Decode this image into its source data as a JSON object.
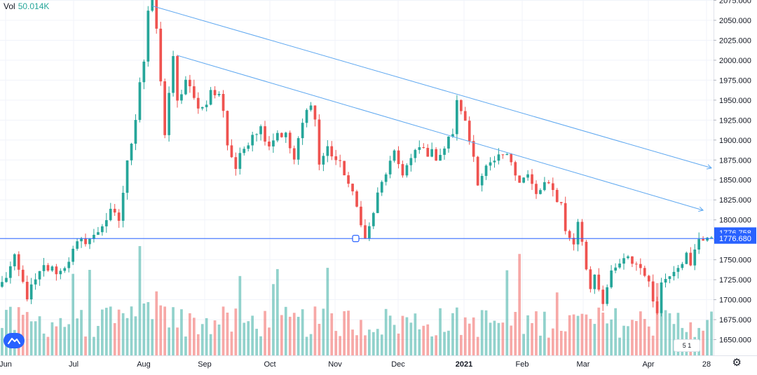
{
  "volume_indicator": {
    "label": "Vol",
    "value": "50.014K"
  },
  "price_badges": {
    "upper": {
      "value": "1776.758",
      "color": "#2962ff"
    },
    "lower": {
      "value": "1776.680",
      "color": "#2962ff"
    }
  },
  "event_flag": {
    "text": "5 1"
  },
  "colors": {
    "up": "#26a69a",
    "down": "#ef5350",
    "trendline": "#5da7f0",
    "hline": "#2962ff",
    "grid": "#f0f3fa"
  },
  "icons": {
    "logo": "tradingview-logo-icon",
    "settings": "gear-icon"
  },
  "chart_data": {
    "type": "candlestick",
    "x_ticks": [
      "Jun",
      "Jul",
      "Aug",
      "Sep",
      "Oct",
      "Nov",
      "Dec",
      "2021",
      "Feb",
      "Mar",
      "Apr",
      "28"
    ],
    "y_ticks": [
      1650,
      1675,
      1700,
      1725,
      1750,
      1775,
      1800,
      1825,
      1850,
      1875,
      1900,
      1925,
      1950,
      1975,
      2000,
      2025,
      2050,
      2075
    ],
    "y_tick_labels": [
      "1650.000",
      "1675.000",
      "1700.000",
      "1725.000",
      "1750.000",
      "1775.000",
      "1800.000",
      "1825.000",
      "1850.000",
      "1875.000",
      "1900.000",
      "1925.000",
      "1950.000",
      "1975.000",
      "2000.000",
      "2025.000",
      "2050.000",
      "2075.000"
    ],
    "ylim": [
      1640,
      2080
    ],
    "close_path": [
      [
        0,
        1720
      ],
      [
        3,
        1750
      ],
      [
        6,
        1705
      ],
      [
        10,
        1740
      ],
      [
        14,
        1735
      ],
      [
        18,
        1768
      ],
      [
        20,
        1775
      ],
      [
        22,
        1778
      ],
      [
        24,
        1795
      ],
      [
        26,
        1808
      ],
      [
        28,
        1800
      ],
      [
        30,
        1870
      ],
      [
        32,
        1930
      ],
      [
        33,
        1975
      ],
      [
        34,
        2000
      ],
      [
        35,
        2062
      ],
      [
        36,
        2070
      ],
      [
        37,
        2040
      ],
      [
        38,
        1970
      ],
      [
        39,
        1910
      ],
      [
        40,
        1960
      ],
      [
        41,
        2000
      ],
      [
        42,
        1945
      ],
      [
        44,
        1975
      ],
      [
        46,
        1950
      ],
      [
        48,
        1940
      ],
      [
        50,
        1960
      ],
      [
        52,
        1955
      ],
      [
        53,
        1940
      ],
      [
        54,
        1895
      ],
      [
        56,
        1865
      ],
      [
        58,
        1890
      ],
      [
        60,
        1910
      ],
      [
        62,
        1915
      ],
      [
        64,
        1895
      ],
      [
        66,
        1910
      ],
      [
        68,
        1905
      ],
      [
        70,
        1875
      ],
      [
        72,
        1920
      ],
      [
        74,
        1950
      ],
      [
        75,
        1925
      ],
      [
        76,
        1870
      ],
      [
        78,
        1890
      ],
      [
        80,
        1875
      ],
      [
        82,
        1860
      ],
      [
        84,
        1830
      ],
      [
        86,
        1800
      ],
      [
        87,
        1775
      ],
      [
        88,
        1790
      ],
      [
        90,
        1830
      ],
      [
        92,
        1860
      ],
      [
        94,
        1880
      ],
      [
        96,
        1860
      ],
      [
        98,
        1875
      ],
      [
        100,
        1890
      ],
      [
        102,
        1885
      ],
      [
        104,
        1880
      ],
      [
        106,
        1890
      ],
      [
        108,
        1910
      ],
      [
        109,
        1945
      ],
      [
        110,
        1940
      ],
      [
        111,
        1920
      ],
      [
        112,
        1900
      ],
      [
        113,
        1880
      ],
      [
        114,
        1850
      ],
      [
        116,
        1865
      ],
      [
        118,
        1870
      ],
      [
        120,
        1880
      ],
      [
        122,
        1875
      ],
      [
        124,
        1850
      ],
      [
        126,
        1855
      ],
      [
        128,
        1830
      ],
      [
        130,
        1845
      ],
      [
        132,
        1835
      ],
      [
        134,
        1820
      ],
      [
        135,
        1790
      ],
      [
        136,
        1775
      ],
      [
        137,
        1770
      ],
      [
        138,
        1800
      ],
      [
        139,
        1770
      ],
      [
        140,
        1740
      ],
      [
        141,
        1715
      ],
      [
        142,
        1735
      ],
      [
        143,
        1715
      ],
      [
        144,
        1700
      ],
      [
        146,
        1730
      ],
      [
        148,
        1745
      ],
      [
        150,
        1750
      ],
      [
        152,
        1745
      ],
      [
        154,
        1735
      ],
      [
        156,
        1700
      ],
      [
        157,
        1690
      ],
      [
        158,
        1720
      ],
      [
        160,
        1735
      ],
      [
        162,
        1745
      ],
      [
        164,
        1755
      ],
      [
        165,
        1740
      ],
      [
        166,
        1760
      ],
      [
        167,
        1778
      ],
      [
        170,
        1778
      ]
    ],
    "annotations": [
      {
        "type": "trendline",
        "from": [
          36,
          2068
        ],
        "to": [
          170,
          1865
        ]
      },
      {
        "type": "trendline",
        "from": [
          42,
          2006
        ],
        "to": [
          168,
          1812
        ]
      },
      {
        "type": "horizontal_line",
        "y": 1776.68
      }
    ]
  }
}
